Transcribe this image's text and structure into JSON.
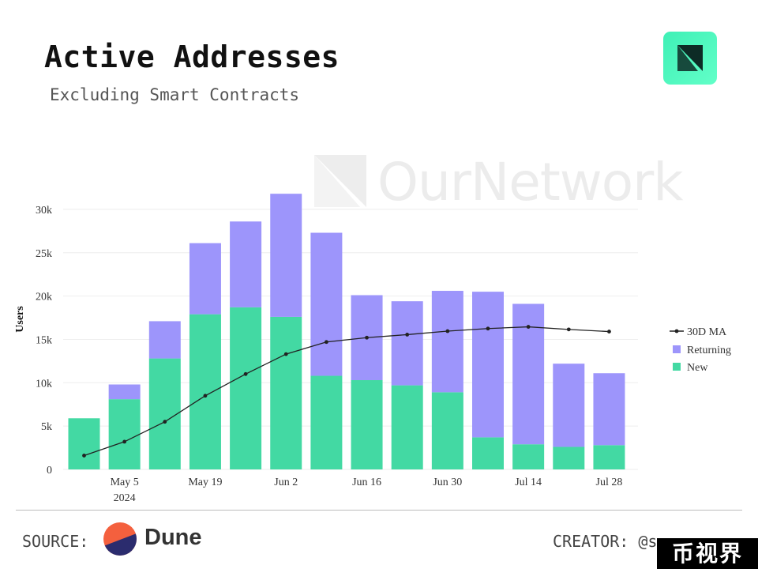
{
  "header": {
    "title": "Active Addresses",
    "subtitle": "Excluding Smart Contracts"
  },
  "watermark": {
    "text": "OurNetwork"
  },
  "footer": {
    "source_label": "SOURCE:",
    "source_name": "Dune",
    "creator_label": "CREATOR: @s",
    "badge_text": "币视界"
  },
  "chart_data": {
    "type": "bar",
    "stacked": true,
    "categories": [
      "2024-04-28",
      "2024-05-05",
      "2024-05-12",
      "2024-05-19",
      "2024-05-26",
      "2024-06-02",
      "2024-06-09",
      "2024-06-16",
      "2024-06-23",
      "2024-06-30",
      "2024-07-07",
      "2024-07-14",
      "2024-07-21",
      "2024-07-28"
    ],
    "x_tick_labels": [
      {
        "category": "2024-05-05",
        "label": "May 5",
        "sublabel": "2024"
      },
      {
        "category": "2024-05-19",
        "label": "May 19"
      },
      {
        "category": "2024-06-02",
        "label": "Jun 2"
      },
      {
        "category": "2024-06-16",
        "label": "Jun 16"
      },
      {
        "category": "2024-06-30",
        "label": "Jun 30"
      },
      {
        "category": "2024-07-14",
        "label": "Jul 14"
      },
      {
        "category": "2024-07-28",
        "label": "Jul 28"
      }
    ],
    "series": [
      {
        "name": "New",
        "kind": "bar",
        "color": "#43d9a3",
        "values": [
          5900,
          8100,
          12800,
          17900,
          18700,
          17600,
          10800,
          10300,
          9700,
          8900,
          3700,
          2900,
          2600,
          2800
        ]
      },
      {
        "name": "Returning",
        "kind": "bar",
        "color": "#9d95fb",
        "values": [
          0,
          1700,
          4300,
          8200,
          9900,
          14200,
          16500,
          9800,
          9700,
          11700,
          16800,
          16200,
          9600,
          8300
        ]
      },
      {
        "name": "30D MA",
        "kind": "line",
        "color": "#222222",
        "values": [
          1600,
          3200,
          5500,
          8500,
          11000,
          13300,
          14700,
          15200,
          15550,
          15950,
          16250,
          16450,
          16150,
          15900
        ]
      }
    ],
    "legend_order": [
      "30D MA",
      "Returning",
      "New"
    ],
    "ylabel": "Users",
    "yticks": [
      0,
      5000,
      10000,
      15000,
      20000,
      25000,
      30000
    ],
    "ytick_labels": [
      "0",
      "5k",
      "10k",
      "15k",
      "20k",
      "25k",
      "30k"
    ],
    "ylim": [
      0,
      33000
    ],
    "grid": true,
    "legend_position": "right"
  }
}
